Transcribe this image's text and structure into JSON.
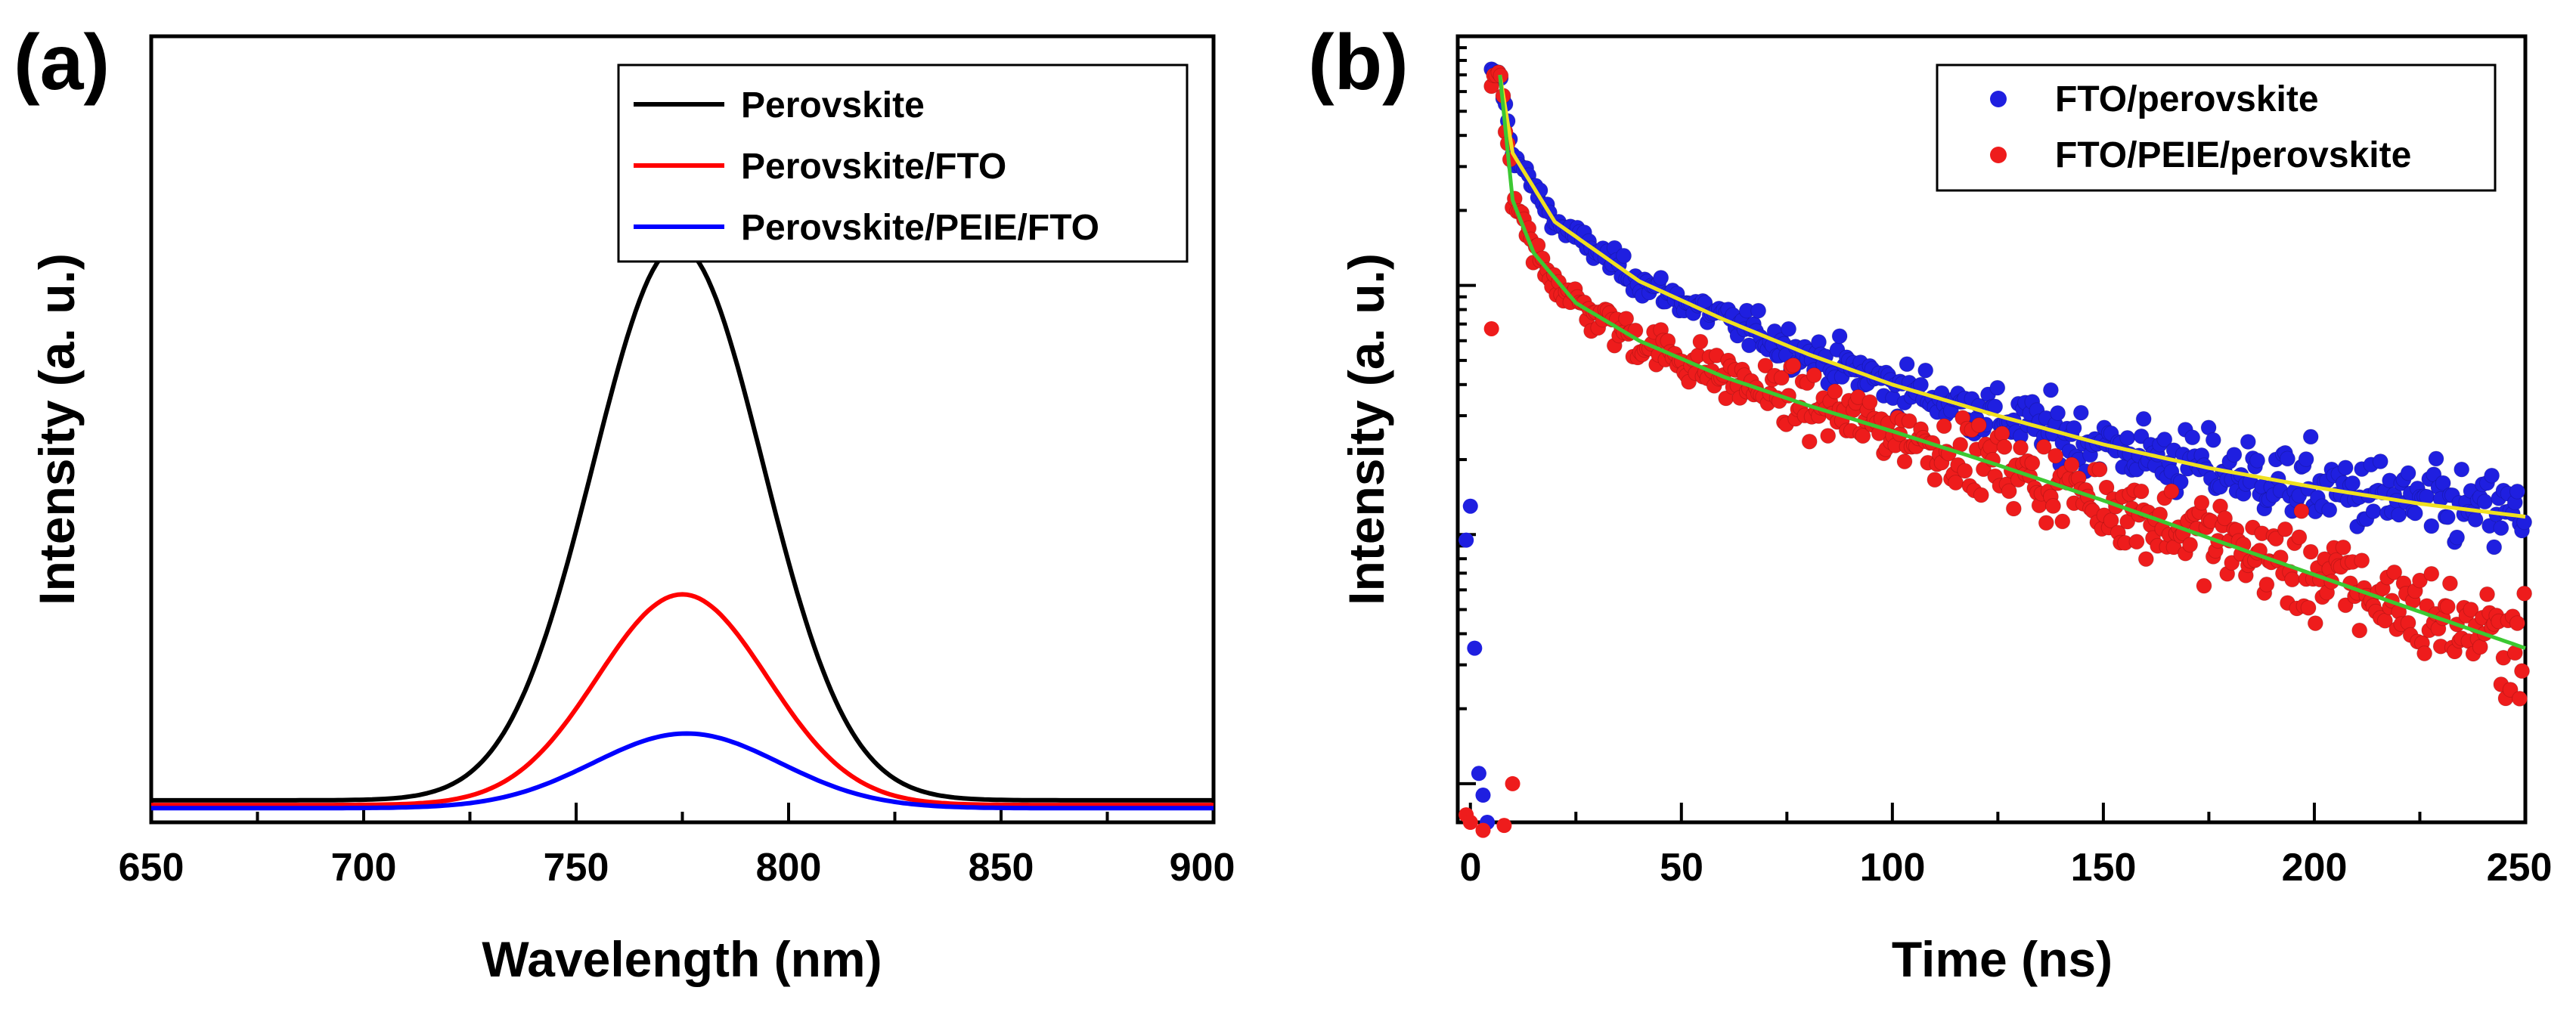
{
  "panels": [
    {
      "label": "(a)",
      "chart_data": {
        "type": "line",
        "title": "",
        "xlabel": "Wavelength (nm)",
        "ylabel": "Intensity (a. u.)",
        "xlim": [
          650,
          900
        ],
        "ylim": [
          0,
          1.0
        ],
        "xticks": [
          650,
          700,
          750,
          800,
          850,
          900
        ],
        "yticks_shown": false,
        "grid": false,
        "legend_position": "top-right",
        "series": [
          {
            "name": "Perovskite",
            "color": "#000000",
            "baseline": 0.028,
            "peak_center": 774,
            "peak_height": 0.705,
            "peak_sigma": 20
          },
          {
            "name": "Perovskite/FTO",
            "color": "#ff0000",
            "baseline": 0.022,
            "peak_center": 775,
            "peak_height": 0.268,
            "peak_sigma": 20
          },
          {
            "name": "Perovskite/PEIE/FTO",
            "color": "#0000ff",
            "baseline": 0.018,
            "peak_center": 776,
            "peak_height": 0.095,
            "peak_sigma": 22
          }
        ]
      }
    },
    {
      "label": "(b)",
      "chart_data": {
        "type": "scatter",
        "title": "",
        "xlabel": "Time (ns)",
        "ylabel": "Intensity (a. u.)",
        "xlim": [
          -3,
          250
        ],
        "ylim": [
          0.0007,
          1.0
        ],
        "yscale": "log",
        "xticks": [
          0,
          50,
          100,
          150,
          200,
          250
        ],
        "yticks_shown": false,
        "grid": false,
        "legend_position": "top-right",
        "series": [
          {
            "name": "FTO/perovskite",
            "color": "#1f1fe0",
            "marker": "circle",
            "fit_color": "#f0e020",
            "fit_points": [
              [
                7,
                0.7
              ],
              [
                10,
                0.34
              ],
              [
                20,
                0.18
              ],
              [
                40,
                0.104
              ],
              [
                60,
                0.073
              ],
              [
                80,
                0.053
              ],
              [
                100,
                0.04
              ],
              [
                125,
                0.03
              ],
              [
                150,
                0.023
              ],
              [
                175,
                0.0185
              ],
              [
                200,
                0.0155
              ],
              [
                225,
                0.0133
              ],
              [
                250,
                0.0118
              ]
            ],
            "rise_points": [
              [
                -1,
                0.0095
              ],
              [
                0,
                0.013
              ],
              [
                1,
                0.0035
              ],
              [
                2,
                0.0011
              ],
              [
                3,
                0.0009
              ],
              [
                4,
                0.0007
              ]
            ]
          },
          {
            "name": "FTO/PEIE/perovskite",
            "color": "#ee1c1c",
            "marker": "circle",
            "fit_color": "#3cc832",
            "fit_points": [
              [
                7,
                0.7
              ],
              [
                10,
                0.22
              ],
              [
                15,
                0.135
              ],
              [
                25,
                0.085
              ],
              [
                40,
                0.06
              ],
              [
                60,
                0.043
              ],
              [
                80,
                0.033
              ],
              [
                100,
                0.026
              ],
              [
                125,
                0.019
              ],
              [
                150,
                0.0137
              ],
              [
                175,
                0.0097
              ],
              [
                200,
                0.0069
              ],
              [
                225,
                0.0049
              ],
              [
                250,
                0.0035
              ]
            ],
            "rise_points": [
              [
                -1,
                0.00075
              ],
              [
                0,
                0.0007
              ],
              [
                3,
                0.00065
              ],
              [
                5,
                0.067
              ],
              [
                8,
                0.00068
              ],
              [
                10,
                0.001
              ]
            ]
          }
        ]
      }
    }
  ]
}
